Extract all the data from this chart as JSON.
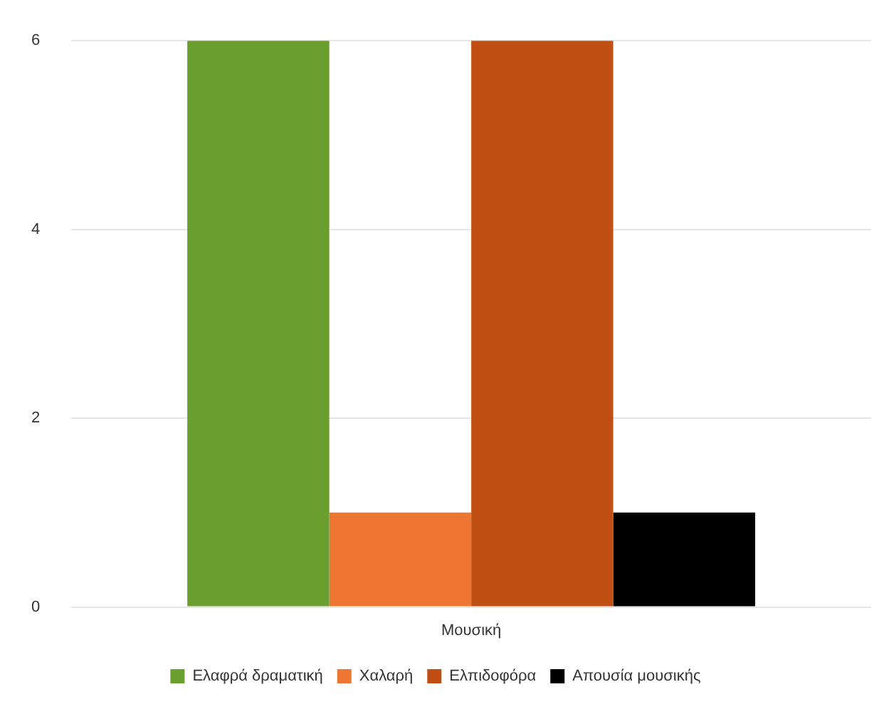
{
  "chart_data": {
    "type": "bar",
    "categories": [
      "Μουσική"
    ],
    "series": [
      {
        "name": "Ελαφρά δραματική",
        "color": "#6a9f2f",
        "values": [
          6
        ]
      },
      {
        "name": "Χαλαρή",
        "color": "#ef7533",
        "values": [
          1
        ]
      },
      {
        "name": "Ελπιδοφόρα",
        "color": "#c04f13",
        "values": [
          6
        ]
      },
      {
        "name": "Απουσία μουσικής",
        "color": "#000000",
        "values": [
          1
        ]
      }
    ],
    "ylim": [
      0,
      6
    ],
    "yticks": [
      0,
      2,
      4,
      6
    ],
    "grid": "y",
    "legend": "bottom"
  }
}
